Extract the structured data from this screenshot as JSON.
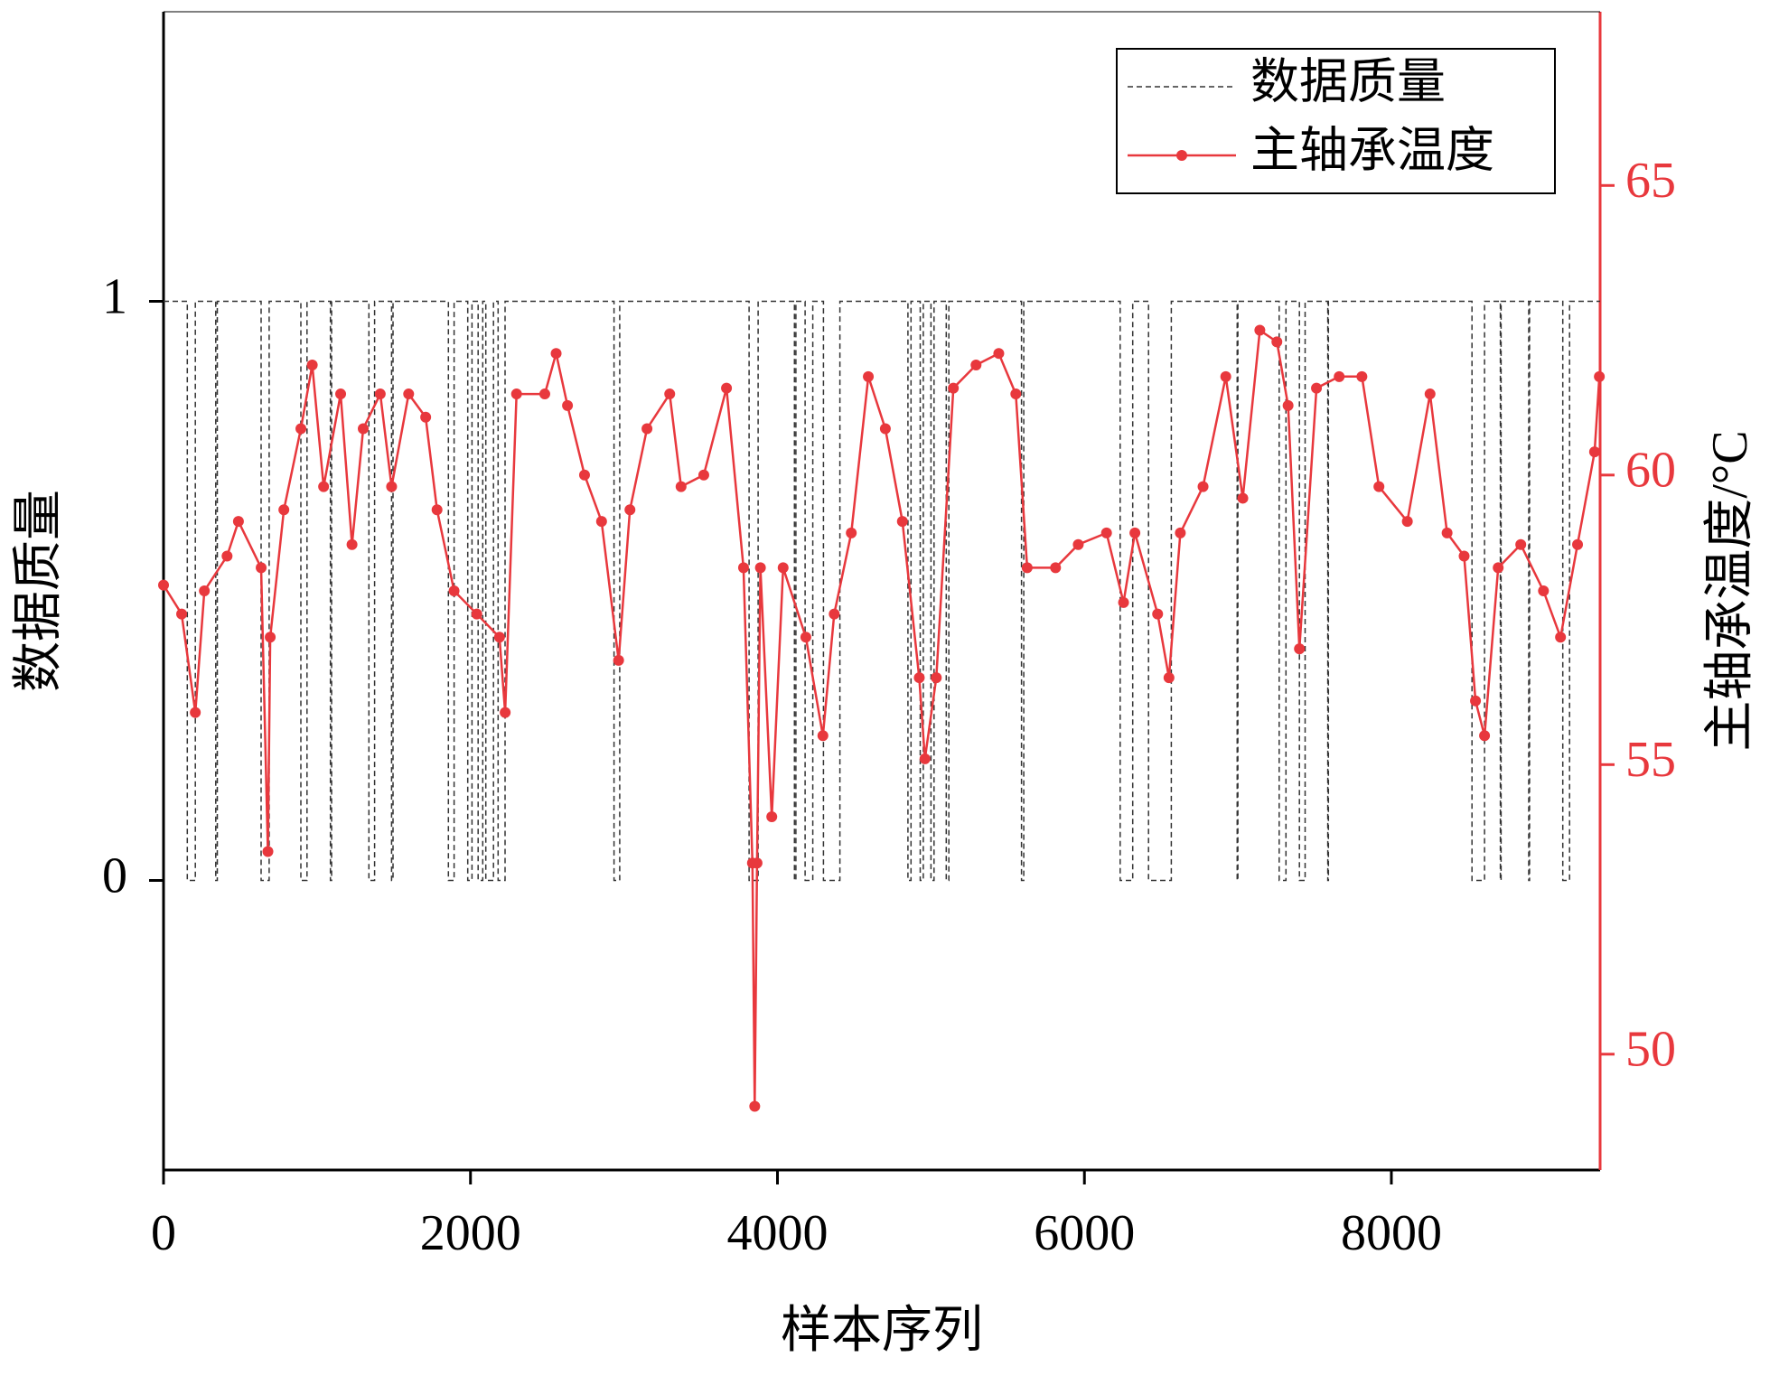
{
  "chart_data": {
    "type": "line",
    "x_label": "样本序列",
    "y_label": "数据质量",
    "y2_label": "主轴承温度/°C",
    "xlim": [
      0,
      9360
    ],
    "xticks": [
      0,
      2000,
      4000,
      6000,
      8000
    ],
    "ylim": [
      -0.5,
      1.5
    ],
    "yticks": [
      0,
      1
    ],
    "y2lim": [
      48,
      68
    ],
    "y2ticks": [
      50,
      55,
      60,
      65
    ],
    "legend": "upper right",
    "series": [
      {
        "name": "数据质量",
        "color": "#333333",
        "dashed": true,
        "x": [
          0,
          155,
          155,
          207,
          207,
          340,
          340,
          350,
          350,
          636,
          636,
          688,
          688,
          895,
          895,
          935,
          935,
          1087,
          1087,
          1095,
          1095,
          1338,
          1338,
          1375,
          1375,
          1486,
          1486,
          1495,
          1495,
          1856,
          1856,
          1893,
          1893,
          1982,
          1982,
          2010,
          2010,
          2050,
          2050,
          2080,
          2080,
          2100,
          2100,
          2150,
          2150,
          2180,
          2180,
          2225,
          2225,
          2935,
          2935,
          2972,
          2972,
          3815,
          3815,
          3874,
          3874,
          4111,
          4111,
          4120,
          4120,
          4180,
          4180,
          4230,
          4230,
          4300,
          4300,
          4407,
          4407,
          4850,
          4850,
          4870,
          4870,
          4930,
          4930,
          4950,
          4950,
          5000,
          5000,
          5020,
          5020,
          5100,
          5100,
          5117,
          5117,
          5590,
          5590,
          5605,
          5605,
          6233,
          6233,
          6315,
          6315,
          6418,
          6418,
          6566,
          6566,
          6995,
          6995,
          7000,
          7000,
          7269,
          7269,
          7313,
          7313,
          7401,
          7401,
          7438,
          7438,
          7586,
          7586,
          7590,
          7590,
          8525,
          8525,
          8607,
          8607,
          8710,
          8710,
          8715,
          8715,
          8895,
          8895,
          8900,
          8900,
          9117,
          9117,
          9161,
          9161,
          9360
        ],
        "values": [
          1,
          1,
          0,
          0,
          1,
          1,
          0,
          0,
          1,
          1,
          0,
          0,
          1,
          1,
          0,
          0,
          1,
          1,
          0,
          0,
          1,
          1,
          0,
          0,
          1,
          1,
          0,
          0,
          1,
          1,
          0,
          0,
          1,
          1,
          0,
          0,
          1,
          1,
          0,
          0,
          1,
          1,
          0,
          0,
          1,
          1,
          0,
          0,
          1,
          1,
          0,
          0,
          1,
          1,
          0,
          0,
          1,
          1,
          0,
          0,
          1,
          1,
          0,
          0,
          1,
          1,
          0,
          0,
          1,
          1,
          0,
          0,
          1,
          1,
          0,
          0,
          1,
          1,
          0,
          0,
          1,
          1,
          0,
          0,
          1,
          1,
          0,
          0,
          1,
          1,
          0,
          0,
          1,
          1,
          0,
          0,
          1,
          1,
          0,
          0,
          1,
          1,
          0,
          0,
          1,
          1,
          0,
          0,
          1,
          1,
          0,
          0,
          1,
          1,
          0,
          0,
          1,
          1,
          0,
          0,
          1,
          1,
          0,
          0,
          1,
          1,
          0,
          0,
          1,
          1
        ]
      },
      {
        "name": "主轴承温度",
        "color": "#e8383d",
        "axis": "y2",
        "marker": true,
        "x": [
          0,
          118,
          207,
          266,
          414,
          488,
          636,
          680,
          695,
          784,
          895,
          969,
          1043,
          1154,
          1228,
          1301,
          1412,
          1486,
          1597,
          1708,
          1782,
          1893,
          2041,
          2189,
          2226,
          2300,
          2484,
          2558,
          2632,
          2743,
          2854,
          2965,
          3039,
          3150,
          3298,
          3372,
          3520,
          3668,
          3779,
          3837,
          3852,
          3867,
          3889,
          3963,
          4037,
          4185,
          4296,
          4370,
          4481,
          4592,
          4703,
          4814,
          4924,
          4961,
          5035,
          5146,
          5294,
          5442,
          5553,
          5627,
          5812,
          5960,
          6144,
          6255,
          6329,
          6477,
          6551,
          6625,
          6773,
          6921,
          7032,
          7143,
          7254,
          7327,
          7401,
          7512,
          7660,
          7808,
          7919,
          8104,
          8252,
          8363,
          8474,
          8548,
          8607,
          8696,
          8843,
          8991,
          9102,
          9213,
          9324,
          9355
        ],
        "values": [
          58.1,
          57.6,
          55.9,
          58.0,
          58.6,
          59.2,
          58.4,
          53.5,
          57.2,
          59.4,
          60.8,
          61.9,
          59.8,
          61.4,
          58.8,
          60.8,
          61.4,
          59.8,
          61.4,
          61.0,
          59.4,
          58.0,
          57.6,
          57.2,
          55.9,
          61.4,
          61.4,
          62.1,
          61.2,
          60.0,
          59.2,
          56.8,
          59.4,
          60.8,
          61.4,
          59.8,
          60.0,
          61.5,
          58.4,
          53.3,
          49.1,
          53.3,
          58.4,
          54.1,
          58.4,
          57.2,
          55.5,
          57.6,
          59.0,
          61.7,
          60.8,
          59.2,
          56.5,
          55.1,
          56.5,
          61.5,
          61.9,
          62.1,
          61.4,
          58.4,
          58.4,
          58.8,
          59.0,
          57.8,
          59.0,
          57.6,
          56.5,
          59.0,
          59.8,
          61.7,
          59.6,
          62.5,
          62.3,
          61.2,
          57.0,
          61.5,
          61.7,
          61.7,
          59.8,
          59.2,
          61.4,
          59.0,
          58.6,
          56.1,
          55.5,
          58.4,
          58.8,
          58.0,
          57.2,
          58.8,
          60.4,
          61.7
        ]
      }
    ]
  }
}
